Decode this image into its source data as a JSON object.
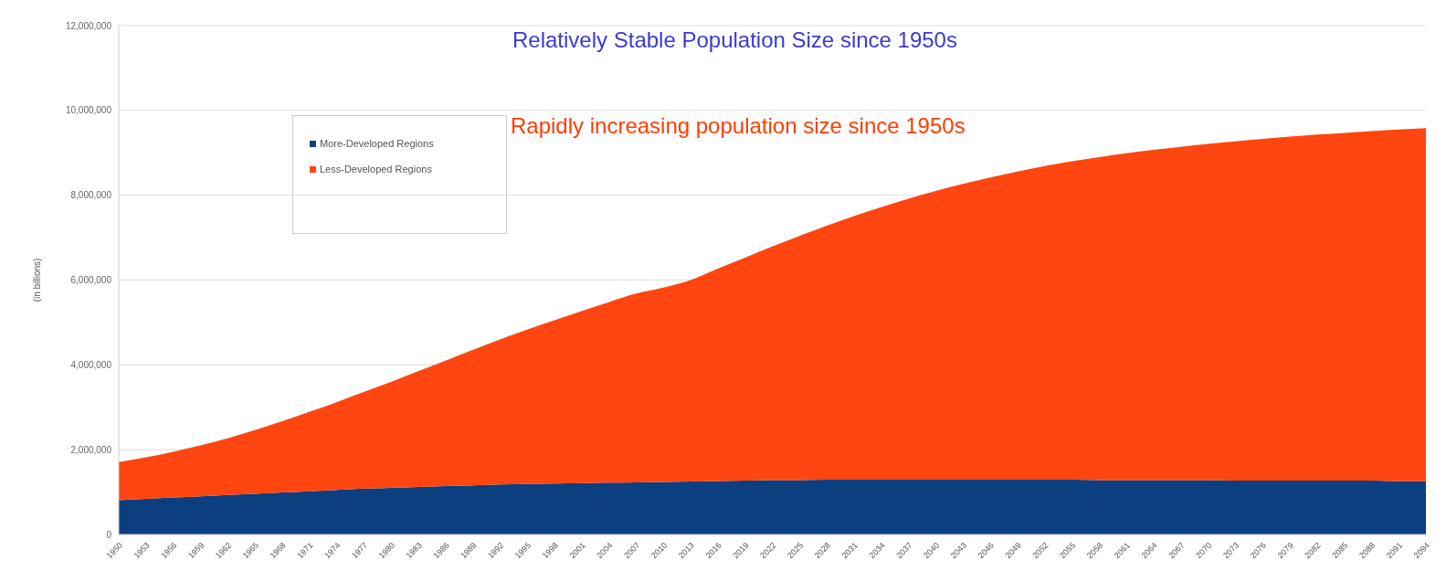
{
  "chart_data": {
    "type": "area",
    "stacked": true,
    "ylabel": "(in billions)",
    "annotations": [
      "Relatively Stable Population Size since 1950s",
      "Rapidly increasing population size since 1950s"
    ],
    "categories": [
      "1950",
      "1953",
      "1956",
      "1959",
      "1962",
      "1965",
      "1968",
      "1971",
      "1974",
      "1977",
      "1980",
      "1983",
      "1986",
      "1989",
      "1992",
      "1995",
      "1998",
      "2001",
      "2004",
      "2007",
      "2010",
      "2013",
      "2016",
      "2019",
      "2022",
      "2025",
      "2028",
      "2031",
      "2034",
      "2037",
      "2040",
      "2043",
      "2046",
      "2049",
      "2052",
      "2055",
      "2058",
      "2061",
      "2064",
      "2067",
      "2070",
      "2073",
      "2076",
      "2079",
      "2082",
      "2085",
      "2088",
      "2091",
      "2094"
    ],
    "series": [
      {
        "name": "More-Developed Regions",
        "color": "#0b3f80",
        "values": [
          810000,
          840000,
          870000,
          900000,
          930000,
          960000,
          990000,
          1020000,
          1050000,
          1080000,
          1100000,
          1120000,
          1140000,
          1160000,
          1180000,
          1190000,
          1200000,
          1210000,
          1220000,
          1230000,
          1240000,
          1250000,
          1260000,
          1270000,
          1280000,
          1280000,
          1290000,
          1290000,
          1290000,
          1290000,
          1290000,
          1290000,
          1290000,
          1290000,
          1290000,
          1290000,
          1280000,
          1280000,
          1280000,
          1280000,
          1280000,
          1270000,
          1270000,
          1270000,
          1270000,
          1270000,
          1270000,
          1260000,
          1260000
        ]
      },
      {
        "name": "Less-Developed Regions",
        "color": "#ff4510",
        "values": [
          900000,
          980000,
          1080000,
          1200000,
          1340000,
          1500000,
          1680000,
          1870000,
          2070000,
          2280000,
          2500000,
          2730000,
          2960000,
          3190000,
          3420000,
          3640000,
          3850000,
          4060000,
          4260000,
          4450000,
          4580000,
          4750000,
          5010000,
          5260000,
          5510000,
          5760000,
          5990000,
          6220000,
          6430000,
          6630000,
          6810000,
          6980000,
          7130000,
          7270000,
          7400000,
          7510000,
          7620000,
          7710000,
          7790000,
          7860000,
          7930000,
          8000000,
          8060000,
          8110000,
          8160000,
          8200000,
          8240000,
          8290000,
          8320000
        ]
      }
    ],
    "ylim": [
      0,
      12000000
    ],
    "yticks": [
      0,
      {
        "value": 2000000,
        "label": "2,000,000"
      },
      {
        "value": 4000000,
        "label": "4,000,000"
      },
      {
        "value": 6000000,
        "label": "6,000,000"
      },
      {
        "value": 8000000,
        "label": "8,000,000"
      },
      {
        "value": 10000000,
        "label": "10,000,000"
      },
      {
        "value": 12000000,
        "label": "12,000,000"
      }
    ],
    "grid": "y",
    "legend": "top left"
  }
}
